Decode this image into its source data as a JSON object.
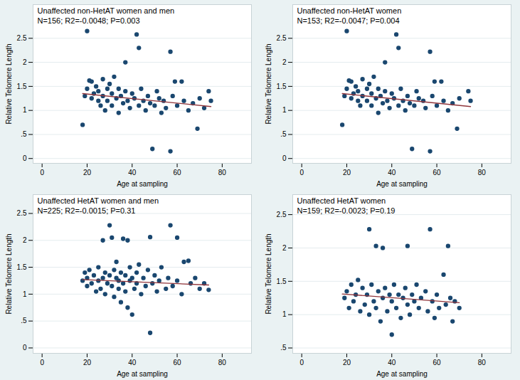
{
  "chart_data": [
    {
      "type": "scatter",
      "title": "Unaffected non-HetAT women and men",
      "subtitle": "N=156; R2=-0.0048; P=0.003",
      "xlabel": "Age at sampling",
      "ylabel": "Relative Telomere Length",
      "xlim": [
        -4,
        93
      ],
      "xticks": [
        0,
        20,
        40,
        60,
        80
      ],
      "ylim": [
        -0.1,
        3.2
      ],
      "yticks": [
        0,
        {
          "value": 0.5,
          "label": ".5"
        },
        1,
        1.5,
        2,
        2.5
      ],
      "grid": true,
      "series": [
        {
          "type": "scatter",
          "color": "#1a476f",
          "marker": "circle",
          "x": [
            18,
            19,
            20,
            20,
            21,
            22,
            22,
            23,
            24,
            25,
            25,
            26,
            27,
            27,
            28,
            29,
            29,
            30,
            31,
            31,
            32,
            33,
            34,
            34,
            35,
            36,
            37,
            37,
            38,
            39,
            40,
            41,
            42,
            43,
            43,
            44,
            45,
            46,
            47,
            48,
            49,
            50,
            51,
            52,
            53,
            54,
            55,
            57,
            57,
            58,
            59,
            60,
            62,
            63,
            65,
            67,
            69,
            70,
            72,
            74,
            75
          ],
          "values": [
            0.7,
            1.3,
            2.65,
            1.45,
            1.62,
            1.25,
            1.6,
            1.35,
            1.5,
            1.2,
            1.4,
            1.1,
            1.65,
            1.3,
            1.0,
            1.45,
            1.2,
            1.55,
            1.35,
            1.1,
            1.7,
            1.25,
            0.95,
            1.45,
            1.3,
            1.15,
            2.0,
            1.4,
            1.2,
            1.05,
            1.35,
            1.25,
            2.58,
            2.3,
            1.1,
            1.45,
            1.2,
            1.0,
            1.3,
            1.15,
            0.2,
            1.1,
            1.4,
            1.25,
            0.95,
            1.2,
            1.05,
            2.22,
            0.15,
            1.3,
            1.6,
            1.1,
            1.6,
            1.2,
            1.0,
            1.15,
            0.62,
            1.25,
            1.05,
            1.4,
            1.2
          ]
        },
        {
          "type": "line",
          "color": "#90353b",
          "line_style": "solid",
          "x": [
            18,
            75
          ],
          "values": [
            1.35,
            1.08
          ]
        }
      ]
    },
    {
      "type": "scatter",
      "title": "Unaffected non-HetAT women",
      "subtitle": "N=153; R2=-0.0047; P=0.004",
      "xlabel": "Age at sampling",
      "ylabel": "Relative Telomere Length",
      "xlim": [
        -4,
        93
      ],
      "xticks": [
        0,
        20,
        40,
        60,
        80
      ],
      "ylim": [
        -0.1,
        3.2
      ],
      "yticks": [
        0,
        {
          "value": 0.5,
          "label": ".5"
        },
        1,
        1.5,
        2,
        2.5
      ],
      "grid": true,
      "series": [
        {
          "type": "scatter",
          "color": "#1a476f",
          "marker": "circle",
          "x": [
            18,
            19,
            20,
            20,
            21,
            22,
            22,
            23,
            24,
            25,
            25,
            26,
            27,
            27,
            29,
            29,
            30,
            31,
            31,
            32,
            33,
            34,
            34,
            35,
            36,
            37,
            37,
            38,
            39,
            40,
            41,
            42,
            43,
            43,
            44,
            45,
            46,
            47,
            48,
            49,
            50,
            51,
            52,
            54,
            55,
            57,
            57,
            58,
            59,
            60,
            62,
            63,
            65,
            67,
            69,
            70,
            74,
            75
          ],
          "values": [
            0.7,
            1.3,
            2.65,
            1.45,
            1.62,
            1.25,
            1.6,
            1.35,
            1.5,
            1.2,
            1.4,
            1.1,
            1.65,
            1.3,
            1.45,
            1.2,
            1.55,
            1.35,
            1.1,
            1.7,
            1.25,
            0.95,
            1.45,
            1.3,
            1.15,
            2.0,
            1.4,
            1.2,
            1.05,
            1.35,
            1.25,
            2.58,
            2.3,
            1.1,
            1.45,
            1.2,
            1.0,
            1.3,
            1.15,
            0.2,
            1.1,
            1.4,
            1.25,
            1.2,
            1.05,
            2.22,
            0.15,
            1.3,
            1.6,
            1.1,
            1.6,
            1.2,
            1.0,
            1.15,
            0.62,
            1.25,
            1.4,
            1.2
          ]
        },
        {
          "type": "line",
          "color": "#90353b",
          "line_style": "solid",
          "x": [
            18,
            75
          ],
          "values": [
            1.35,
            1.08
          ]
        }
      ]
    },
    {
      "type": "scatter",
      "title": "Unaffected HetAT women and men",
      "subtitle": "N=225; R2=-0.0015; P=0.31",
      "xlabel": "Age at sampling",
      "ylabel": "Relative Telomere Length",
      "xlim": [
        -4,
        93
      ],
      "xticks": [
        0,
        20,
        40,
        60,
        80
      ],
      "ylim": [
        -0.1,
        2.85
      ],
      "yticks": [
        0,
        {
          "value": 0.5,
          "label": ".5"
        },
        1,
        1.5,
        2,
        2.5
      ],
      "grid": true,
      "series": [
        {
          "type": "scatter",
          "color": "#1a476f",
          "marker": "circle",
          "x": [
            18,
            19,
            20,
            20,
            21,
            22,
            23,
            24,
            25,
            25,
            26,
            27,
            27,
            28,
            28,
            29,
            30,
            30,
            31,
            31,
            32,
            32,
            33,
            33,
            34,
            34,
            35,
            35,
            36,
            36,
            37,
            37,
            38,
            38,
            39,
            39,
            40,
            40,
            41,
            42,
            42,
            43,
            44,
            45,
            46,
            47,
            48,
            48,
            49,
            50,
            51,
            52,
            53,
            55,
            56,
            57,
            58,
            60,
            60,
            62,
            63,
            65,
            66,
            68,
            70,
            72,
            74
          ],
          "values": [
            1.25,
            1.4,
            1.3,
            1.15,
            1.45,
            1.2,
            1.35,
            1.05,
            1.5,
            1.25,
            1.1,
            2.0,
            1.3,
            1.4,
            1.0,
            1.2,
            2.28,
            1.35,
            2.05,
            1.15,
            1.45,
            0.95,
            1.3,
            1.6,
            1.1,
            1.25,
            1.4,
            0.85,
            2.03,
            1.2,
            1.35,
            1.05,
            2.0,
            0.75,
            1.25,
            1.5,
            0.62,
            1.3,
            1.1,
            1.4,
            1.2,
            1.55,
            1.0,
            1.3,
            1.15,
            1.45,
            2.06,
            0.28,
            1.2,
            1.35,
            1.05,
            1.25,
            1.5,
            1.1,
            1.3,
            2.28,
            1.15,
            2.05,
            1.25,
            1.0,
            1.6,
            1.62,
            1.2,
            1.3,
            1.1,
            1.2,
            1.08
          ]
        },
        {
          "type": "line",
          "color": "#90353b",
          "line_style": "solid",
          "x": [
            18,
            74
          ],
          "values": [
            1.27,
            1.17
          ]
        }
      ]
    },
    {
      "type": "scatter",
      "title": "Unaffected HetAT women",
      "subtitle": "N=159; R2=-0.0023; P=0.19",
      "xlabel": "Age at sampling",
      "ylabel": "Relative Telomere Length",
      "xlim": [
        -4,
        93
      ],
      "xticks": [
        0,
        20,
        40,
        60,
        80
      ],
      "ylim": [
        0.42,
        2.8
      ],
      "yticks": [
        {
          "value": 0.5,
          "label": ".5"
        },
        1,
        1.5,
        2,
        2.5
      ],
      "grid": true,
      "series": [
        {
          "type": "scatter",
          "color": "#1a476f",
          "marker": "circle",
          "x": [
            19,
            20,
            21,
            22,
            23,
            24,
            25,
            26,
            27,
            28,
            29,
            30,
            30,
            31,
            32,
            33,
            33,
            34,
            35,
            36,
            36,
            37,
            38,
            39,
            40,
            40,
            41,
            42,
            43,
            44,
            45,
            46,
            47,
            47,
            48,
            49,
            50,
            51,
            52,
            53,
            55,
            56,
            57,
            58,
            59,
            60,
            61,
            63,
            64,
            65,
            66,
            67,
            68,
            70
          ],
          "values": [
            1.25,
            1.35,
            1.1,
            1.45,
            1.2,
            1.3,
            1.52,
            1.05,
            1.4,
            1.15,
            1.3,
            2.28,
            1.0,
            1.45,
            1.2,
            2.03,
            1.1,
            1.35,
            0.9,
            2.0,
            1.25,
            1.4,
            1.05,
            1.3,
            0.7,
            1.2,
            1.45,
            1.1,
            1.3,
            0.95,
            1.25,
            1.4,
            2.03,
            1.15,
            1.0,
            1.3,
            1.2,
            1.45,
            1.1,
            1.25,
            1.35,
            1.05,
            2.28,
            1.2,
            0.95,
            1.3,
            1.1,
            1.6,
            1.15,
            2.03,
            1.25,
            0.9,
            1.2,
            1.1
          ]
        },
        {
          "type": "line",
          "color": "#90353b",
          "line_style": "solid",
          "x": [
            18,
            70
          ],
          "values": [
            1.31,
            1.18
          ]
        }
      ]
    }
  ]
}
